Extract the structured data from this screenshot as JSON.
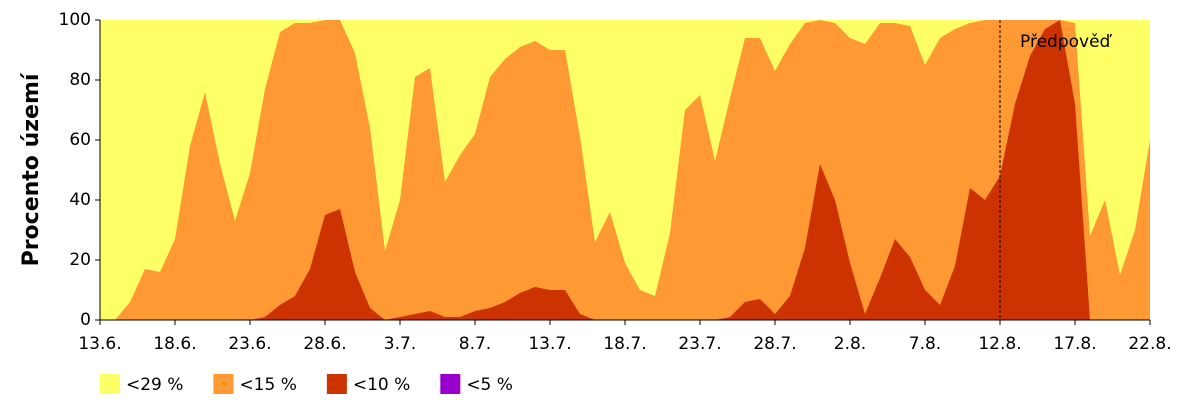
{
  "chart_data": {
    "type": "area",
    "y_label": "Procento území",
    "categories": [
      "13.6.",
      null,
      null,
      null,
      null,
      "18.6.",
      null,
      null,
      null,
      null,
      "23.6.",
      null,
      null,
      null,
      null,
      "28.6.",
      null,
      null,
      null,
      null,
      "3.7.",
      null,
      null,
      null,
      null,
      "8.7.",
      null,
      null,
      null,
      null,
      "13.7.",
      null,
      null,
      null,
      null,
      "18.7.",
      null,
      null,
      null,
      null,
      "23.7.",
      null,
      null,
      null,
      null,
      "28.7.",
      null,
      null,
      null,
      null,
      "2.8.",
      null,
      null,
      null,
      null,
      "7.8.",
      null,
      null,
      null,
      null,
      "12.8.",
      null,
      null,
      null,
      null,
      "17.8.",
      null,
      null,
      null,
      null,
      "22.8."
    ],
    "series": [
      {
        "name": "<29 %",
        "color": "#ffff66",
        "values": [
          100,
          100,
          100,
          100,
          100,
          100,
          100,
          100,
          100,
          100,
          100,
          100,
          100,
          100,
          100,
          100,
          100,
          100,
          100,
          100,
          100,
          100,
          100,
          100,
          100,
          100,
          100,
          100,
          100,
          100,
          100,
          100,
          100,
          100,
          100,
          100,
          100,
          100,
          100,
          100,
          100,
          100,
          100,
          100,
          100,
          100,
          100,
          100,
          100,
          100,
          100,
          100,
          100,
          100,
          100,
          100,
          100,
          100,
          100,
          100,
          100,
          100,
          100,
          100,
          100,
          100,
          100,
          100,
          100,
          100,
          100
        ]
      },
      {
        "name": "<15 %",
        "color": "#ff9933",
        "values": [
          0,
          0,
          6,
          17,
          16,
          27,
          58,
          76,
          52,
          33,
          49,
          77,
          96,
          99,
          99,
          100,
          100,
          89,
          64,
          23,
          40,
          81,
          84,
          46,
          55,
          62,
          81,
          87,
          91,
          93,
          90,
          90,
          61,
          26,
          36,
          19,
          10,
          8,
          29,
          70,
          75,
          53,
          74,
          94,
          94,
          83,
          92,
          99,
          100,
          99,
          94,
          92,
          99,
          99,
          98,
          85,
          94,
          97,
          99,
          100,
          100,
          100,
          100,
          100,
          100,
          99,
          28,
          40,
          15,
          30,
          60
        ]
      },
      {
        "name": "<10 %",
        "color": "#cc3300",
        "values": [
          0,
          0,
          0,
          0,
          0,
          0,
          0,
          0,
          0,
          0,
          0,
          1,
          5,
          8,
          17,
          35,
          37,
          16,
          4,
          0,
          1,
          2,
          3,
          1,
          1,
          3,
          4,
          6,
          9,
          11,
          10,
          10,
          2,
          0,
          0,
          0,
          0,
          0,
          0,
          0,
          0,
          0,
          1,
          6,
          7,
          2,
          8,
          24,
          52,
          40,
          19,
          2,
          14,
          27,
          21,
          10,
          5,
          18,
          44,
          40,
          48,
          72,
          88,
          97,
          100,
          72,
          0,
          0,
          0,
          0,
          0
        ]
      },
      {
        "name": "<5 %",
        "color": "#9900cc",
        "values": [
          0,
          0,
          0,
          0,
          0,
          0,
          0,
          0,
          0,
          0,
          0,
          0,
          0,
          0,
          0,
          0,
          0,
          0,
          0,
          0,
          0,
          0,
          0,
          0,
          0,
          0,
          0,
          0,
          0,
          0,
          0,
          0,
          0,
          0,
          0,
          0,
          0,
          0,
          0,
          0,
          0,
          0,
          0,
          0,
          0,
          0,
          0,
          0,
          0,
          0,
          0,
          0,
          0,
          0,
          0,
          0,
          0,
          0,
          0,
          0,
          0,
          0,
          0,
          0,
          0,
          0,
          0,
          0,
          0,
          0,
          0
        ]
      }
    ],
    "annotation": {
      "text": "Předpověď",
      "x": "12.8."
    },
    "ylim": [
      0,
      100
    ],
    "yticks": [
      0,
      20,
      40,
      60,
      80,
      100
    ]
  }
}
